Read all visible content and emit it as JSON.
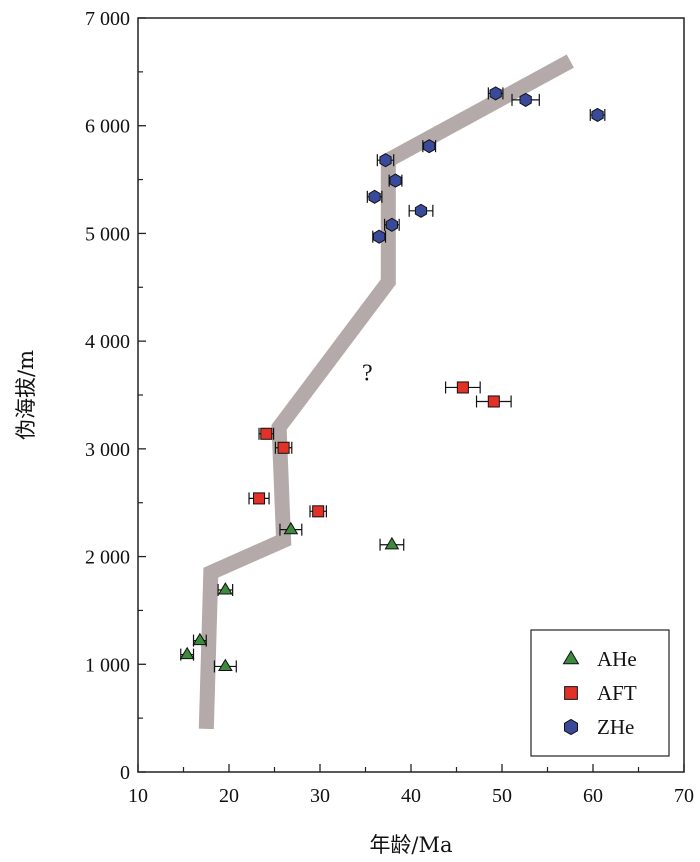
{
  "chart_data": {
    "type": "scatter",
    "xlabel": "年龄/Ma",
    "ylabel": "伪海拔/m",
    "xlim": [
      10,
      70
    ],
    "ylim": [
      0,
      7000
    ],
    "x_ticks": [
      10,
      20,
      30,
      40,
      50,
      60,
      70
    ],
    "y_ticks": [
      0,
      1000,
      2000,
      3000,
      4000,
      5000,
      6000,
      7000
    ],
    "x_tick_labels": [
      "10",
      "20",
      "30",
      "40",
      "50",
      "60",
      "70"
    ],
    "y_tick_labels": [
      "0",
      "1 000",
      "2 000",
      "3 000",
      "4 000",
      "5 000",
      "6 000",
      "7 000"
    ],
    "grid": false,
    "legend_position": "bottom-right",
    "annotation": "?",
    "annotation_at": {
      "x": 35.2,
      "y": 3720
    },
    "series": [
      {
        "name": "AHe",
        "marker": "triangle",
        "color": "#3c8a3c",
        "points": [
          {
            "x": 15.4,
            "y": 1090,
            "err": 0.7
          },
          {
            "x": 16.8,
            "y": 1220,
            "err": 0.7
          },
          {
            "x": 19.6,
            "y": 980,
            "err": 1.2
          },
          {
            "x": 19.6,
            "y": 1690,
            "err": 0.8
          },
          {
            "x": 26.8,
            "y": 2250,
            "err": 1.2
          },
          {
            "x": 37.9,
            "y": 2110,
            "err": 1.3
          }
        ]
      },
      {
        "name": "AFT",
        "marker": "square",
        "color": "#e23127",
        "points": [
          {
            "x": 24.1,
            "y": 3140,
            "err": 0.8
          },
          {
            "x": 26.0,
            "y": 3010,
            "err": 0.9
          },
          {
            "x": 23.3,
            "y": 2540,
            "err": 1.1
          },
          {
            "x": 29.8,
            "y": 2420,
            "err": 0.9
          },
          {
            "x": 45.7,
            "y": 3570,
            "err": 1.9
          },
          {
            "x": 49.1,
            "y": 3440,
            "err": 1.9
          }
        ]
      },
      {
        "name": "ZHe",
        "marker": "hexagon",
        "color": "#3a4a9a",
        "points": [
          {
            "x": 49.3,
            "y": 6300,
            "err": 0.8
          },
          {
            "x": 52.6,
            "y": 6240,
            "err": 1.5
          },
          {
            "x": 60.5,
            "y": 6100,
            "err": 0.8
          },
          {
            "x": 42.0,
            "y": 5810,
            "err": 0.7
          },
          {
            "x": 37.2,
            "y": 5680,
            "err": 0.9
          },
          {
            "x": 38.3,
            "y": 5490,
            "err": 0.7
          },
          {
            "x": 36.0,
            "y": 5340,
            "err": 0.8
          },
          {
            "x": 41.1,
            "y": 5210,
            "err": 1.3
          },
          {
            "x": 37.9,
            "y": 5080,
            "err": 0.8
          },
          {
            "x": 36.5,
            "y": 4970,
            "err": 0.7
          }
        ]
      }
    ],
    "trend_band": {
      "color": "#b3aaa9",
      "points": [
        {
          "x": 17.5,
          "y": 400
        },
        {
          "x": 18.0,
          "y": 1850
        },
        {
          "x": 26.0,
          "y": 2150
        },
        {
          "x": 25.5,
          "y": 3200
        },
        {
          "x": 37.5,
          "y": 4550
        },
        {
          "x": 37.5,
          "y": 5680
        },
        {
          "x": 57.5,
          "y": 6600
        }
      ]
    }
  }
}
